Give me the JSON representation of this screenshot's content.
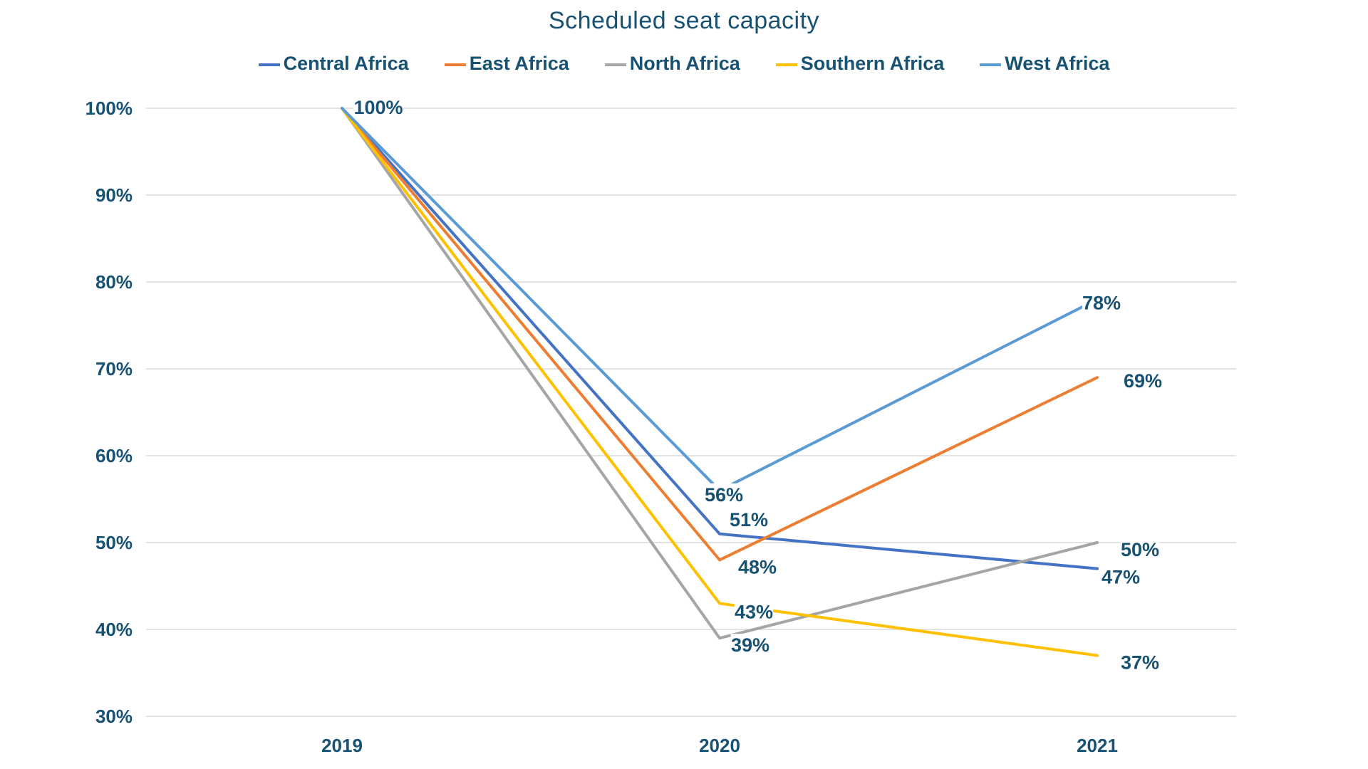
{
  "page": {
    "background_color": "#FFFFFF"
  },
  "chart_data": {
    "type": "line",
    "title": "Scheduled seat capacity",
    "x_categories": [
      "2019",
      "2020",
      "2021"
    ],
    "y_tick_labels": [
      "100%",
      "90%",
      "80%",
      "70%",
      "60%",
      "50%",
      "40%",
      "30%"
    ],
    "ylim": [
      30,
      100
    ],
    "grid": "horizontal-only",
    "legend_position": "top",
    "text_color": "#175273",
    "grid_color": "#D9D9D9",
    "shared_start_label": "100%",
    "data_label_suffix": "%",
    "series": [
      {
        "name": "Central Africa",
        "color": "#4472C4",
        "values": [
          100,
          51,
          47
        ]
      },
      {
        "name": "East Africa",
        "color": "#ED7D31",
        "values": [
          100,
          48,
          69
        ]
      },
      {
        "name": "North Africa",
        "color": "#A5A5A5",
        "values": [
          100,
          39,
          50
        ]
      },
      {
        "name": "Southern Africa",
        "color": "#FFC000",
        "values": [
          100,
          43,
          37
        ]
      },
      {
        "name": "West Africa",
        "color": "#5B9BD5",
        "values": [
          100,
          56,
          78
        ]
      }
    ]
  }
}
